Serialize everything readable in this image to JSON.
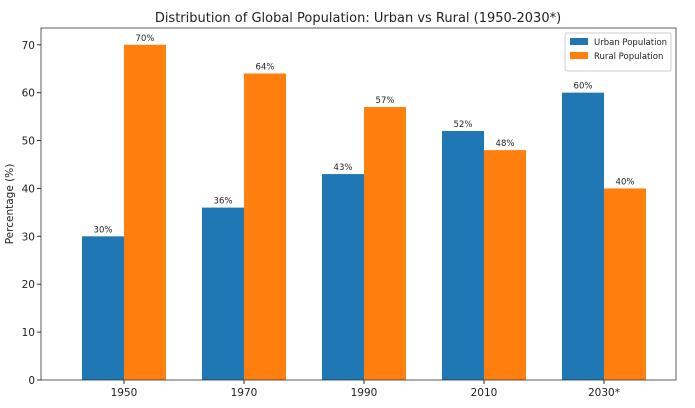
{
  "chart_data": {
    "type": "bar",
    "title": "Distribution of Global Population: Urban vs Rural (1950-2030*)",
    "xlabel": "",
    "ylabel": "Percentage (%)",
    "categories": [
      "1950",
      "1970",
      "1990",
      "2010",
      "2030*"
    ],
    "series": [
      {
        "name": "Urban Population",
        "values": [
          30,
          36,
          43,
          52,
          60
        ],
        "color": "#1f77b4",
        "labels": [
          "30%",
          "36%",
          "43%",
          "52%",
          "60%"
        ]
      },
      {
        "name": "Rural Population",
        "values": [
          70,
          64,
          57,
          48,
          40
        ],
        "color": "#ff7f0e",
        "labels": [
          "70%",
          "64%",
          "57%",
          "48%",
          "40%"
        ]
      }
    ],
    "ylim": [
      0,
      73.5
    ],
    "yticks": [
      0,
      10,
      20,
      30,
      40,
      50,
      60,
      70
    ],
    "grid": false,
    "legend": "top-right"
  }
}
